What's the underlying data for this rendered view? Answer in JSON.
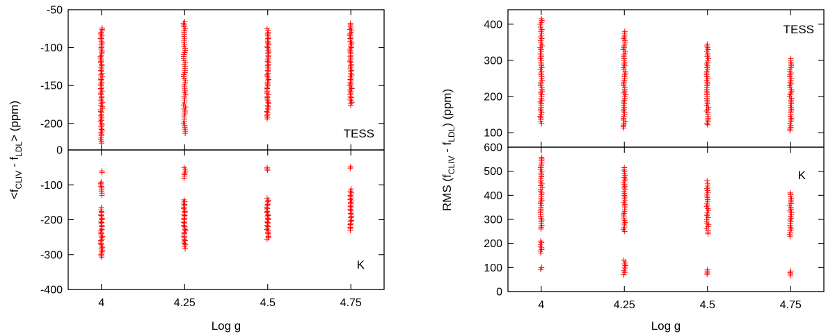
{
  "colors": {
    "points": "#ff0000",
    "axes": "#000000"
  },
  "chart_data": [
    {
      "type": "scatter",
      "panel": "left-top",
      "label": "TESS",
      "label_position": "bottom-right",
      "marker": "plus",
      "xlabel": "",
      "ylabel": "<f_CLIV - f_LDL> (ppm)",
      "xlim": [
        3.9,
        4.85
      ],
      "ylim": [
        -235,
        -50
      ],
      "xticks": [
        4,
        4.25,
        4.5,
        4.75
      ],
      "xtick_labels": [
        "",
        "",
        "",
        ""
      ],
      "yticks": [
        -50,
        -100,
        -150,
        -200
      ],
      "ytick_labels": [
        "-50",
        "-100",
        "-150",
        "-200"
      ],
      "series": [
        {
          "x": 4,
          "values": [
            -226,
            -218,
            -212,
            -206,
            -200,
            -194,
            -188,
            -182,
            -176,
            -170,
            -164,
            -158,
            -152,
            -146,
            -140,
            -134,
            -128,
            -122,
            -116,
            -110,
            -104,
            -98,
            -92,
            -86,
            -80,
            -74
          ]
        },
        {
          "x": 4.25,
          "values": [
            -213,
            -205,
            -197,
            -189,
            -181,
            -173,
            -165,
            -157,
            -149,
            -141,
            -133,
            -125,
            -117,
            -109,
            -101,
            -93,
            -85,
            -77,
            -70,
            -66
          ]
        },
        {
          "x": 4.5,
          "values": [
            -194,
            -188,
            -182,
            -176,
            -170,
            -164,
            -158,
            -152,
            -146,
            -140,
            -134,
            -128,
            -122,
            -116,
            -110,
            -104,
            -98,
            -92,
            -86,
            -80,
            -75
          ]
        },
        {
          "x": 4.75,
          "values": [
            -176,
            -170,
            -164,
            -158,
            -152,
            -146,
            -140,
            -134,
            -128,
            -122,
            -116,
            -110,
            -104,
            -98,
            -92,
            -86,
            -80,
            -74,
            -68
          ]
        }
      ]
    },
    {
      "type": "scatter",
      "panel": "left-bottom",
      "label": "K",
      "label_position": "bottom-right",
      "marker": "plus",
      "xlabel": "Log g",
      "ylabel": "",
      "xlim": [
        3.9,
        4.85
      ],
      "ylim": [
        -400,
        0
      ],
      "xticks": [
        4,
        4.25,
        4.5,
        4.75
      ],
      "xtick_labels": [
        "4",
        "4.25",
        "4.5",
        "4.75"
      ],
      "yticks": [
        0,
        -100,
        -200,
        -300,
        -400
      ],
      "ytick_labels": [
        "0",
        "-100",
        "-200",
        "-300",
        "-400"
      ],
      "series": [
        {
          "x": 4,
          "values": [
            -308,
            -300,
            -292,
            -284,
            -276,
            -268,
            -260,
            -252,
            -244,
            -236,
            -228,
            -220,
            -212,
            -204,
            -196,
            -188,
            -180,
            -172,
            -165,
            -130,
            -118,
            -100,
            -92,
            -65,
            -60
          ]
        },
        {
          "x": 4.25,
          "values": [
            -283,
            -276,
            -268,
            -260,
            -252,
            -244,
            -236,
            -228,
            -220,
            -212,
            -204,
            -196,
            -188,
            -180,
            -172,
            -164,
            -156,
            -148,
            -143,
            -82,
            -75,
            -66,
            -55,
            -50
          ]
        },
        {
          "x": 4.5,
          "values": [
            -256,
            -248,
            -240,
            -232,
            -224,
            -216,
            -208,
            -200,
            -192,
            -184,
            -176,
            -168,
            -160,
            -152,
            -144,
            -138,
            -58,
            -54,
            -50
          ]
        },
        {
          "x": 4.75,
          "values": [
            -230,
            -222,
            -214,
            -206,
            -198,
            -190,
            -182,
            -174,
            -166,
            -158,
            -150,
            -142,
            -134,
            -126,
            -118,
            -112,
            -52,
            -48
          ]
        }
      ]
    },
    {
      "type": "scatter",
      "panel": "right-top",
      "label": "TESS",
      "label_position": "top-right",
      "marker": "plus",
      "xlabel": "",
      "ylabel": "RMS (f_CLIV - f_LDL) (ppm)",
      "xlim": [
        3.9,
        4.85
      ],
      "ylim": [
        60,
        440
      ],
      "xticks": [
        4,
        4.25,
        4.5,
        4.75
      ],
      "xtick_labels": [
        "",
        "",
        "",
        ""
      ],
      "yticks": [
        100,
        200,
        300,
        400
      ],
      "ytick_labels": [
        "100",
        "200",
        "300",
        "400"
      ],
      "series": [
        {
          "x": 4,
          "values": [
            125,
            132,
            150,
            165,
            180,
            195,
            210,
            225,
            240,
            255,
            270,
            285,
            300,
            315,
            330,
            345,
            360,
            375,
            390,
            405,
            415
          ]
        },
        {
          "x": 4.25,
          "values": [
            113,
            125,
            140,
            155,
            170,
            185,
            200,
            215,
            230,
            245,
            260,
            275,
            290,
            305,
            320,
            335,
            350,
            365,
            380
          ]
        },
        {
          "x": 4.5,
          "values": [
            122,
            135,
            150,
            165,
            180,
            195,
            210,
            225,
            240,
            255,
            270,
            285,
            300,
            315,
            330,
            345
          ]
        },
        {
          "x": 4.75,
          "values": [
            105,
            115,
            130,
            145,
            160,
            175,
            190,
            205,
            220,
            235,
            250,
            265,
            280,
            295,
            305
          ]
        }
      ]
    },
    {
      "type": "scatter",
      "panel": "right-bottom",
      "label": "K",
      "label_position": "top-right",
      "marker": "plus",
      "xlabel": "Log g",
      "ylabel": "",
      "xlim": [
        3.9,
        4.85
      ],
      "ylim": [
        0,
        600
      ],
      "xticks": [
        4,
        4.25,
        4.5,
        4.75
      ],
      "xtick_labels": [
        "4",
        "4.25",
        "4.5",
        "4.75"
      ],
      "yticks": [
        0,
        100,
        200,
        300,
        400,
        500,
        600
      ],
      "ytick_labels": [
        "0",
        "100",
        "200",
        "300",
        "400",
        "500",
        "600"
      ],
      "series": [
        {
          "x": 4,
          "values": [
            92,
            100,
            160,
            175,
            210,
            260,
            275,
            290,
            305,
            320,
            335,
            350,
            365,
            380,
            395,
            410,
            425,
            440,
            455,
            470,
            485,
            500,
            515,
            530,
            545,
            558
          ]
        },
        {
          "x": 4.25,
          "values": [
            70,
            80,
            115,
            130,
            250,
            265,
            280,
            295,
            310,
            325,
            340,
            355,
            370,
            385,
            400,
            415,
            430,
            445,
            460,
            475,
            490,
            505,
            515
          ]
        },
        {
          "x": 4.5,
          "values": [
            72,
            78,
            90,
            240,
            255,
            270,
            285,
            300,
            315,
            330,
            345,
            360,
            375,
            390,
            405,
            420,
            435,
            450,
            460
          ]
        },
        {
          "x": 4.75,
          "values": [
            65,
            72,
            85,
            230,
            245,
            260,
            275,
            290,
            305,
            320,
            335,
            350,
            365,
            380,
            395,
            410
          ]
        }
      ]
    }
  ],
  "labels": {
    "left_ylabel_main": "<f",
    "left_ylabel_sub1": "CLIV",
    "left_ylabel_mid": " - f",
    "left_ylabel_sub2": "LDL",
    "left_ylabel_end": "> (ppm)",
    "right_ylabel_main": "RMS (f",
    "right_ylabel_sub1": "CLIV",
    "right_ylabel_mid": " - f",
    "right_ylabel_sub2": "LDL",
    "right_ylabel_end": ") (ppm)",
    "xlabel": "Log g"
  }
}
